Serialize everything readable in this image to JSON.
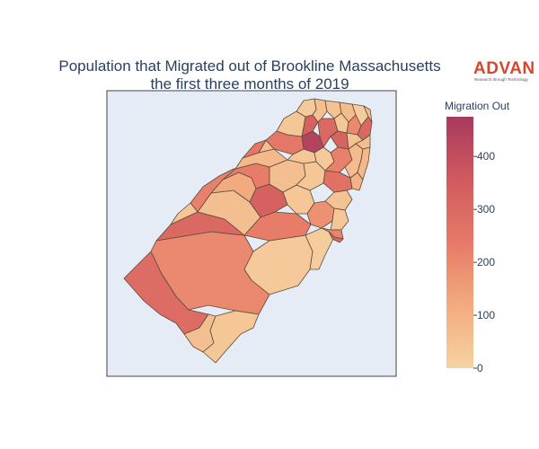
{
  "title": {
    "line1": "Population that Migrated out of Brookline Massachusetts",
    "line2": "the first three months of 2019"
  },
  "logo": {
    "name": "ADVAN",
    "tagline": "Research through Technology",
    "color": "#d6482e"
  },
  "map": {
    "background_color": "#e5ecf6",
    "border_color": "#444444"
  },
  "colorbar": {
    "title": "Migration Out",
    "min": 0,
    "max": 475,
    "ticks": [
      0,
      100,
      200,
      300,
      400
    ],
    "tick_labels": [
      "0",
      "100",
      "200",
      "300",
      "400"
    ],
    "colors": [
      "#f6d3a2",
      "#f3ab7e",
      "#e67a68",
      "#d05a5e",
      "#a83a5d"
    ]
  },
  "regions": [
    {
      "id": "r1",
      "value": 290
    },
    {
      "id": "r2",
      "value": 200
    },
    {
      "id": "r3",
      "value": 60
    },
    {
      "id": "r4",
      "value": 40
    },
    {
      "id": "r5",
      "value": 30
    },
    {
      "id": "r6",
      "value": 300
    },
    {
      "id": "r7",
      "value": 60
    },
    {
      "id": "r8",
      "value": 230
    },
    {
      "id": "r9",
      "value": 120
    },
    {
      "id": "r10",
      "value": 330
    },
    {
      "id": "r11",
      "value": 40
    },
    {
      "id": "r12",
      "value": 180
    },
    {
      "id": "r13",
      "value": 50
    },
    {
      "id": "r14",
      "value": 40
    },
    {
      "id": "r15",
      "value": 210
    },
    {
      "id": "r16",
      "value": 20
    },
    {
      "id": "r17",
      "value": 300
    },
    {
      "id": "r18",
      "value": 230
    },
    {
      "id": "r19",
      "value": 60
    },
    {
      "id": "r20",
      "value": 80
    },
    {
      "id": "r21",
      "value": 40
    },
    {
      "id": "r22",
      "value": 270
    },
    {
      "id": "r23",
      "value": 100
    },
    {
      "id": "r24",
      "value": 440
    },
    {
      "id": "r25",
      "value": 250
    },
    {
      "id": "r26",
      "value": 60
    },
    {
      "id": "r27",
      "value": 40
    },
    {
      "id": "r28",
      "value": 30
    },
    {
      "id": "r29",
      "value": 220
    },
    {
      "id": "r30",
      "value": 70
    },
    {
      "id": "r31",
      "value": 40
    },
    {
      "id": "r32",
      "value": 330
    },
    {
      "id": "r33",
      "value": 30
    },
    {
      "id": "r34",
      "value": 60
    },
    {
      "id": "r35",
      "value": 50
    },
    {
      "id": "r36",
      "value": 70
    },
    {
      "id": "r37",
      "value": 20
    },
    {
      "id": "r38",
      "value": 60
    },
    {
      "id": "r39",
      "value": 300
    },
    {
      "id": "r40",
      "value": 40
    },
    {
      "id": "r41",
      "value": 200
    },
    {
      "id": "r42",
      "value": 320
    },
    {
      "id": "r43",
      "value": 50
    },
    {
      "id": "r44",
      "value": 300
    },
    {
      "id": "r45",
      "value": 60
    },
    {
      "id": "r46",
      "value": 80
    },
    {
      "id": "r47",
      "value": 220
    },
    {
      "id": "r48",
      "value": 40
    },
    {
      "id": "r49",
      "value": 250
    }
  ]
}
